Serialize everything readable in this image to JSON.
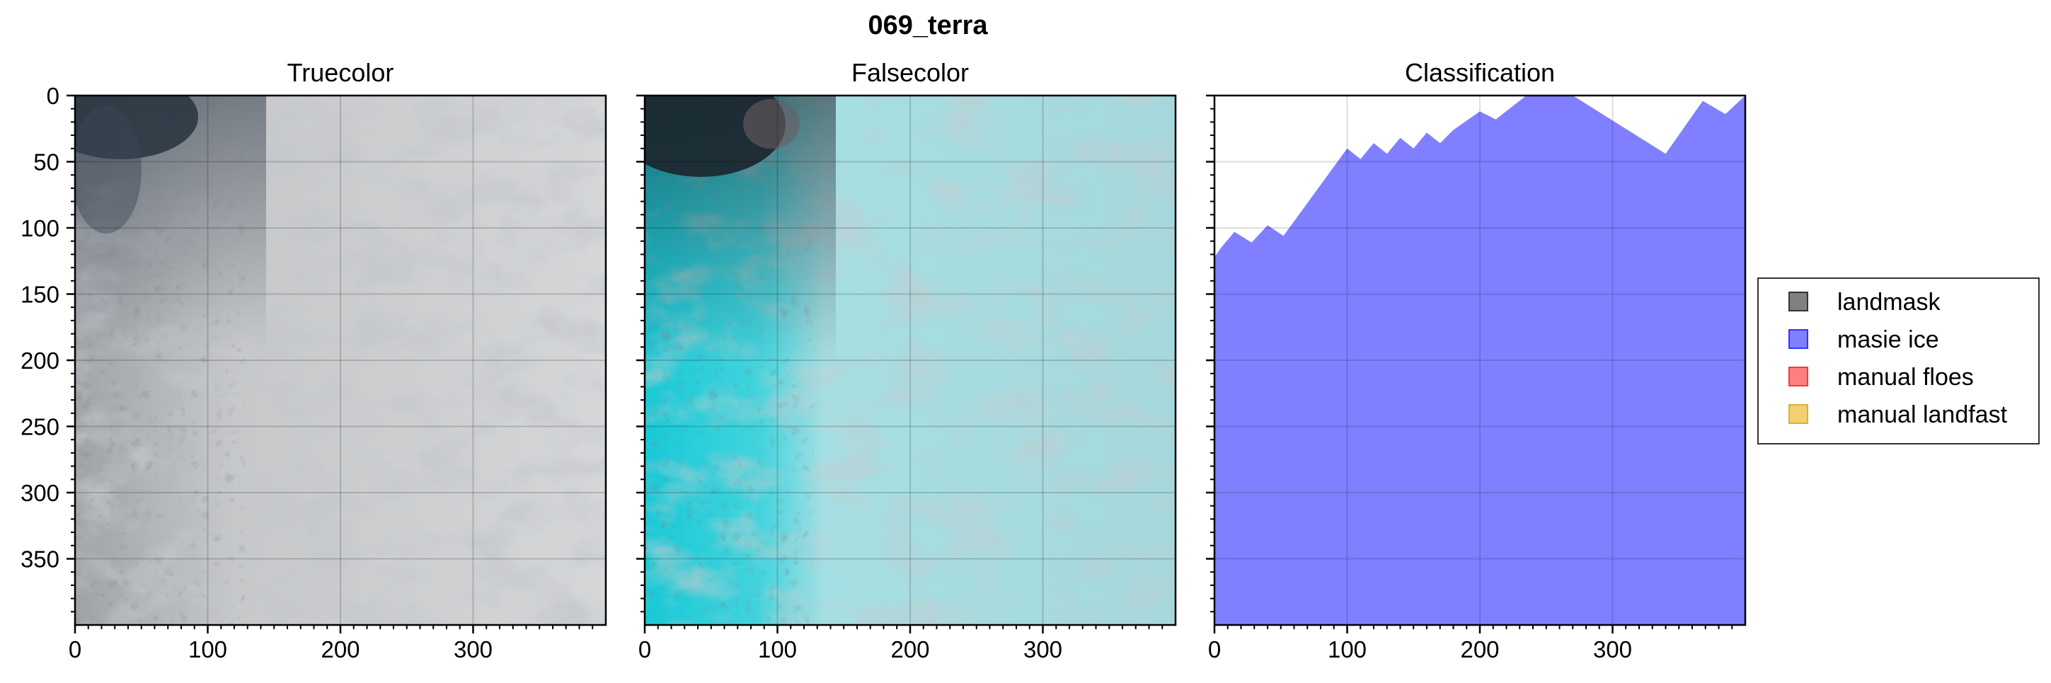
{
  "figure": {
    "suptitle": "069_terra"
  },
  "chart_data": [
    {
      "type": "image",
      "title": "Truecolor",
      "xlim": [
        0,
        400
      ],
      "ylim": [
        0,
        400
      ],
      "y_inverted": true,
      "x_ticks": [
        0,
        100,
        200,
        300
      ],
      "y_ticks": [
        0,
        50,
        100,
        150,
        200,
        250,
        300,
        350
      ],
      "show_y_ticklabels": true,
      "grid": true,
      "palette": {
        "dark": "#2a3644",
        "mid": "#8a9096",
        "light": "#d6d8da"
      }
    },
    {
      "type": "image",
      "title": "Falsecolor",
      "xlim": [
        0,
        400
      ],
      "ylim": [
        0,
        400
      ],
      "y_inverted": true,
      "x_ticks": [
        0,
        100,
        200,
        300
      ],
      "y_ticks": [
        0,
        50,
        100,
        150,
        200,
        250,
        300,
        350
      ],
      "show_y_ticklabels": false,
      "grid": true,
      "palette": {
        "dark": "#1e2e36",
        "cyan": "#29d3df",
        "light": "#a9e1e6",
        "gray": "#9aa3a4"
      }
    },
    {
      "type": "area",
      "title": "Classification",
      "xlim": [
        0,
        400
      ],
      "ylim": [
        0,
        400
      ],
      "y_inverted": true,
      "x_ticks": [
        0,
        100,
        200,
        300
      ],
      "y_ticks": [
        0,
        50,
        100,
        150,
        200,
        250,
        300,
        350
      ],
      "show_y_ticklabels": false,
      "grid": true,
      "series": [
        {
          "name": "masie ice",
          "color": "#7f7fff",
          "boundary_x": [
            0,
            5,
            15,
            28,
            40,
            52,
            100,
            110,
            120,
            130,
            140,
            150,
            160,
            170,
            180,
            200,
            212,
            235,
            270,
            340,
            368,
            385,
            400
          ],
          "boundary_y": [
            122,
            115,
            103,
            111,
            98,
            106,
            40,
            48,
            36,
            44,
            32,
            40,
            28,
            36,
            26,
            12,
            18,
            0,
            0,
            44,
            4,
            14,
            0
          ]
        }
      ]
    }
  ],
  "legend": {
    "placement": "right",
    "items": [
      {
        "label": "landmask",
        "color": "#808080",
        "edge": "#333333"
      },
      {
        "label": "masie ice",
        "color": "#7f7fff",
        "edge": "#3333ff"
      },
      {
        "label": "manual floes",
        "color": "#ff7f7f",
        "edge": "#ff3333"
      },
      {
        "label": "manual landfast",
        "color": "#f0d070",
        "edge": "#d9b233"
      }
    ]
  }
}
